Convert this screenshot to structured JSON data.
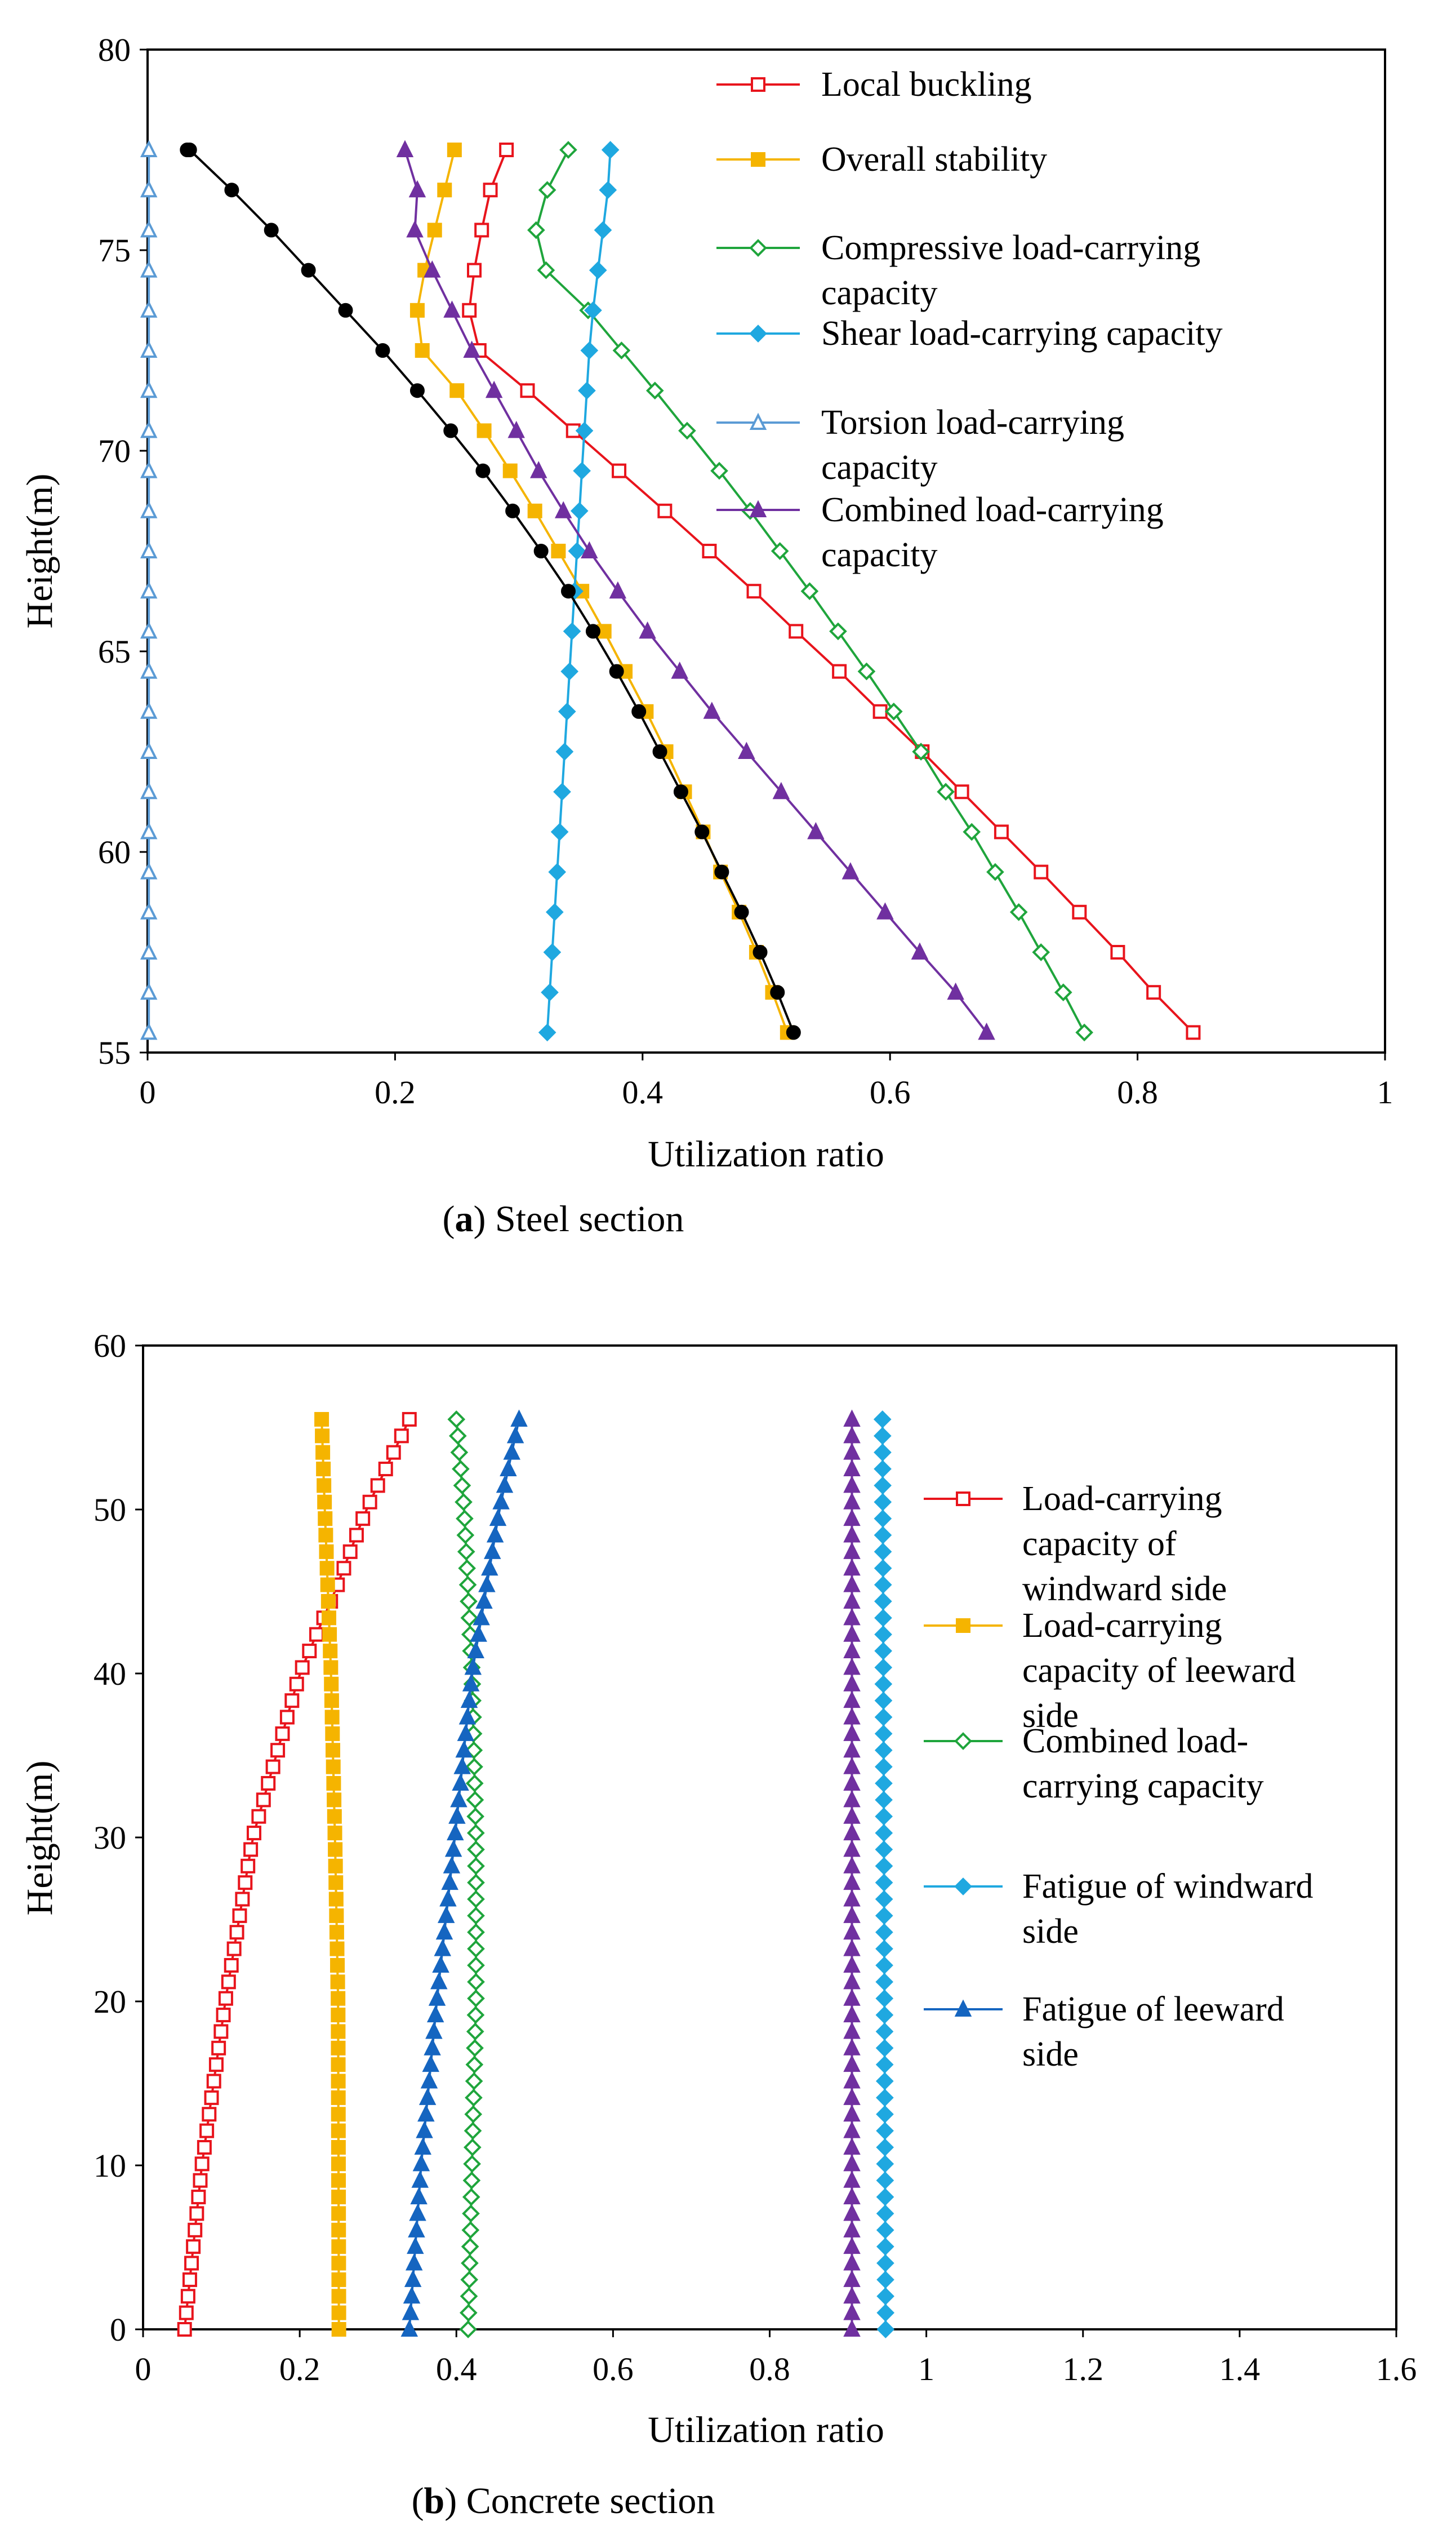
{
  "chart_data": [
    {
      "type": "line",
      "caption": {
        "letter": "a",
        "text": "Steel section"
      },
      "xlabel": "Utilization ratio",
      "ylabel": "Height(m)",
      "xlim": [
        0,
        1
      ],
      "ylim": [
        55,
        80
      ],
      "xticks": [
        0,
        0.2,
        0.4,
        0.6,
        0.8,
        1
      ],
      "xtick_labels": [
        "0",
        "0.2",
        "0.4",
        "0.6",
        "0.8",
        "1"
      ],
      "yticks": [
        55,
        60,
        65,
        70,
        75,
        80
      ],
      "ytick_labels": [
        "55",
        "60",
        "65",
        "70",
        "75",
        "80"
      ],
      "grid": false,
      "legend_position": "top-right",
      "y": [
        55.5,
        56.5,
        57.5,
        58.5,
        59.5,
        60.5,
        61.5,
        62.5,
        63.5,
        64.5,
        65.5,
        66.5,
        67.5,
        68.5,
        69.5,
        70.5,
        71.5,
        72.5,
        73.5,
        74.5,
        75.5,
        76.5,
        77.5
      ],
      "series": [
        {
          "name": "Local buckling",
          "color": "#e8141c",
          "marker": "square-open",
          "legend": [
            "Local buckling"
          ],
          "x": [
            0.845,
            0.813,
            0.784,
            0.753,
            0.722,
            0.69,
            0.658,
            0.626,
            0.592,
            0.559,
            0.524,
            0.49,
            0.454,
            0.418,
            0.381,
            0.344,
            0.307,
            0.268,
            0.26,
            0.264,
            0.27,
            0.277,
            0.29
          ]
        },
        {
          "name": "Overall stability",
          "color": "#f5b400",
          "marker": "square-filled",
          "legend": [
            "Overall stability"
          ],
          "x": [
            0.517,
            0.505,
            0.492,
            0.478,
            0.463,
            0.449,
            0.434,
            0.419,
            0.403,
            0.386,
            0.369,
            0.351,
            0.332,
            0.313,
            0.293,
            0.272,
            0.25,
            0.222,
            0.218,
            0.224,
            0.232,
            0.24,
            0.248
          ]
        },
        {
          "name": "Compressive load-carrying capacity",
          "color": "#1fa53c",
          "marker": "diamond-open",
          "legend": [
            "Compressive load-carrying",
            "capacity"
          ],
          "x": [
            0.757,
            0.74,
            0.722,
            0.704,
            0.685,
            0.666,
            0.645,
            0.625,
            0.603,
            0.581,
            0.558,
            0.535,
            0.511,
            0.487,
            0.462,
            0.436,
            0.41,
            0.383,
            0.356,
            0.322,
            0.314,
            0.323,
            0.34
          ]
        },
        {
          "name": "Shear load-carrying capacity",
          "color": "#1fa8e0",
          "marker": "diamond-filled",
          "legend": [
            "Shear load-carrying capacity"
          ],
          "x": [
            0.323,
            0.325,
            0.327,
            0.329,
            0.331,
            0.333,
            0.335,
            0.337,
            0.339,
            0.341,
            0.343,
            0.345,
            0.347,
            0.349,
            0.351,
            0.353,
            0.355,
            0.357,
            0.36,
            0.364,
            0.368,
            0.372,
            0.374
          ]
        },
        {
          "name": "Torsion load-carrying capacity",
          "color": "#5b9bd5",
          "marker": "triangle-open",
          "legend": [
            "Torsion  load-carrying",
            "capacity"
          ],
          "x": [
            0.001,
            0.001,
            0.001,
            0.001,
            0.001,
            0.001,
            0.001,
            0.001,
            0.001,
            0.001,
            0.001,
            0.001,
            0.001,
            0.001,
            0.001,
            0.001,
            0.001,
            0.001,
            0.001,
            0.001,
            0.001,
            0.001,
            0.001
          ]
        },
        {
          "name": "Combined load-carrying capacity",
          "color": "#7030a0",
          "marker": "triangle-filled",
          "legend": [
            "Combined  load-carrying",
            "capacity"
          ],
          "x": [
            0.678,
            0.653,
            0.624,
            0.596,
            0.568,
            0.54,
            0.512,
            0.484,
            0.456,
            0.43,
            0.404,
            0.38,
            0.357,
            0.336,
            0.316,
            0.298,
            0.28,
            0.262,
            0.246,
            0.23,
            0.216,
            0.218,
            0.208
          ]
        },
        {
          "name": "",
          "color": "#000000",
          "marker": "circle-filled",
          "legend": [],
          "x": [
            0.522,
            0.509,
            0.495,
            0.48,
            0.464,
            0.448,
            0.431,
            0.414,
            0.397,
            0.379,
            0.36,
            0.34,
            0.318,
            0.295,
            0.271,
            0.245,
            0.218,
            0.19,
            0.16,
            0.13,
            0.1,
            0.068,
            0.034,
            0.032
          ],
          "y_override": [
            55.5,
            56.5,
            57.5,
            58.5,
            59.5,
            60.5,
            61.5,
            62.5,
            63.5,
            64.5,
            65.5,
            66.5,
            67.5,
            68.5,
            69.5,
            70.5,
            71.5,
            72.5,
            73.5,
            74.5,
            75.5,
            76.5,
            77.5,
            77.5
          ],
          "x_fix": [
            0.522,
            0.509,
            0.495,
            0.48,
            0.464,
            0.448,
            0.431,
            0.414,
            0.397,
            0.379,
            0.36,
            0.34,
            0.318,
            0.295,
            0.271,
            0.245,
            0.218,
            0.19,
            0.16,
            0.13,
            0.1,
            0.068,
            0.034
          ]
        }
      ]
    },
    {
      "type": "line",
      "caption": {
        "letter": "b",
        "text": "Concrete section"
      },
      "xlabel": "Utilization ratio",
      "ylabel": "Height(m)",
      "xlim": [
        0,
        1.6
      ],
      "ylim": [
        0,
        60
      ],
      "xticks": [
        0,
        0.2,
        0.4,
        0.6,
        0.8,
        1,
        1.2,
        1.4,
        1.6
      ],
      "xtick_labels": [
        "0",
        "0.2",
        "0.4",
        "0.6",
        "0.8",
        "1",
        "1.2",
        "1.4",
        "1.6"
      ],
      "yticks": [
        0,
        10,
        20,
        30,
        40,
        50,
        60
      ],
      "ytick_labels": [
        "0",
        "10",
        "20",
        "30",
        "40",
        "50",
        "60"
      ],
      "grid": false,
      "legend_position": "right",
      "y_range": [
        0,
        55.5
      ],
      "n_points": 56,
      "series": [
        {
          "name": "Load-carrying capacity of windward side",
          "color": "#e8141c",
          "marker": "square-open",
          "legend": [
            "Load-carrying",
            "capacity of",
            "windward side"
          ],
          "x_knots": [
            [
              0,
              0.053
            ],
            [
              10,
              0.075
            ],
            [
              20,
              0.105
            ],
            [
              30,
              0.14
            ],
            [
              40,
              0.2
            ],
            [
              45,
              0.245
            ],
            [
              50,
              0.285
            ],
            [
              55.5,
              0.34
            ]
          ]
        },
        {
          "name": "Load-carrying capacity of leeward side",
          "color": "#f5b400",
          "marker": "square-filled",
          "legend": [
            "Load-carrying",
            "capacity of leeward",
            "side"
          ],
          "x_knots": [
            [
              0,
              0.25
            ],
            [
              20,
              0.249
            ],
            [
              30,
              0.245
            ],
            [
              40,
              0.24
            ],
            [
              50,
              0.232
            ],
            [
              55.5,
              0.228
            ]
          ]
        },
        {
          "name": "Combined load-carrying capacity",
          "color": "#1fa53c",
          "marker": "diamond-open",
          "legend": [
            "Combined load-",
            "carrying capacity"
          ],
          "x_knots": [
            [
              0,
              0.415
            ],
            [
              10,
              0.42
            ],
            [
              20,
              0.425
            ],
            [
              30,
              0.425
            ],
            [
              40,
              0.42
            ],
            [
              50,
              0.41
            ],
            [
              55.5,
              0.4
            ]
          ]
        },
        {
          "name": "Fatigue of windward side",
          "color": "#1fa8e0",
          "marker": "diamond-filled",
          "legend": [
            "Fatigue of windward",
            "side"
          ],
          "x_knots": [
            [
              0,
              0.948
            ],
            [
              55.5,
              0.944
            ]
          ]
        },
        {
          "name": "Fatigue of leeward side",
          "color": "#1565c0",
          "marker": "triangle-filled",
          "legend": [
            "Fatigue of leeward",
            "side"
          ],
          "x_knots": [
            [
              0,
              0.34
            ],
            [
              10,
              0.355
            ],
            [
              20,
              0.375
            ],
            [
              30,
              0.398
            ],
            [
              40,
              0.42
            ],
            [
              50,
              0.455
            ],
            [
              55.5,
              0.48
            ]
          ]
        },
        {
          "name": "",
          "color": "#7030a0",
          "marker": "triangle-filled",
          "legend": [],
          "x_knots": [
            [
              0,
              0.905
            ],
            [
              55.5,
              0.905
            ]
          ]
        }
      ]
    }
  ]
}
